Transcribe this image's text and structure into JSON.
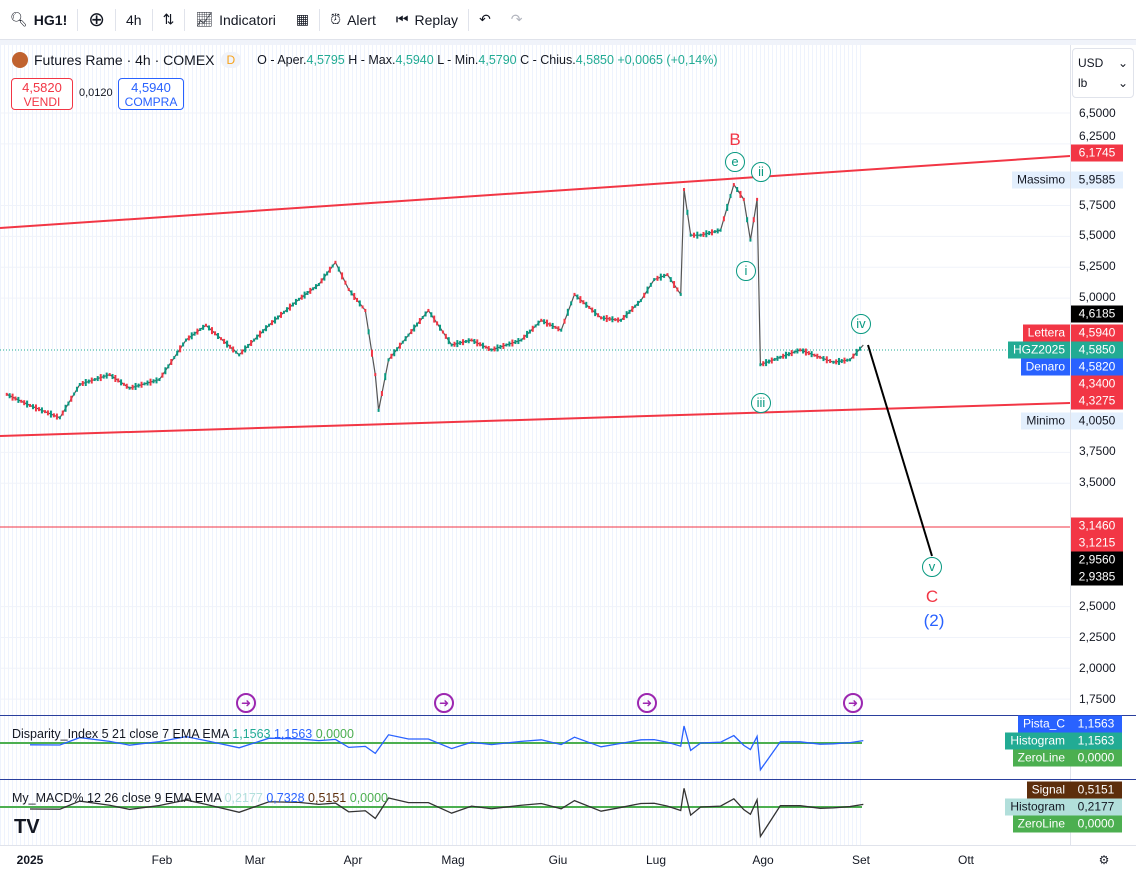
{
  "toolbar": {
    "symbol": "HG1!",
    "interval": "4h",
    "indicators": "Indicatori",
    "alert": "Alert",
    "replay": "Replay"
  },
  "legend": {
    "title": "Futures Rame · 4h · COMEX",
    "badge": "D",
    "open_label": "O - Aper.",
    "open": "4,5795",
    "high_label": "H - Max.",
    "high": "4,5940",
    "low_label": "L - Min.",
    "low": "4,5790",
    "close_label": "C - Chius.",
    "close": "4,5850",
    "change": "+0,0065 (+0,14%)"
  },
  "trade": {
    "sell_price": "4,5820",
    "sell_label": "VENDI",
    "spread": "0,0120",
    "buy_price": "4,5940",
    "buy_label": "COMPRA"
  },
  "units": {
    "currency": "USD",
    "unit": "lb"
  },
  "axis": {
    "ticks": [
      "6,5000",
      "6,2500",
      "5,7500",
      "5,5000",
      "5,2500",
      "5,0000",
      "3,7500",
      "3,5000",
      "2,5000",
      "2,2500",
      "2,0000",
      "1,7500"
    ],
    "tick_values": [
      6.5,
      6.25,
      5.75,
      5.5,
      5.25,
      5.0,
      3.75,
      3.5,
      2.5,
      2.25,
      2.0,
      1.75
    ],
    "tags": [
      {
        "value": "6,1745",
        "price": 6.1745,
        "color": "#f23645"
      },
      {
        "label": "Massimo",
        "value": "5,9585",
        "price": 5.9585,
        "color": "#e3effd",
        "text": "#131722"
      },
      {
        "value": "4,6185",
        "price": 4.6185,
        "color": "#000000"
      },
      {
        "label": "Lettera",
        "value": "4,5940",
        "price": 4.594,
        "color": "#f23645"
      },
      {
        "label": "HGZ2025",
        "value": "4,5850",
        "price": 4.585,
        "color": "#22ab94"
      },
      {
        "label": "Denaro",
        "value": "4,5820",
        "price": 4.582,
        "color": "#2962ff"
      },
      {
        "value": "4,3400",
        "price": 4.34,
        "color": "#f23645"
      },
      {
        "value": "4,3275",
        "price": 4.3275,
        "color": "#f23645"
      },
      {
        "label": "Minimo",
        "value": "4,0050",
        "price": 4.005,
        "color": "#e3effd",
        "text": "#131722"
      },
      {
        "value": "3,1460",
        "price": 3.146,
        "color": "#f23645"
      },
      {
        "value": "3,1215",
        "price": 3.1215,
        "color": "#f23645"
      },
      {
        "value": "2,9560",
        "price": 2.956,
        "color": "#000000"
      },
      {
        "value": "2,9385",
        "price": 2.9385,
        "color": "#000000"
      }
    ]
  },
  "price_path": {
    "days": [
      -7,
      0,
      9,
      15,
      24,
      30,
      39,
      47,
      53,
      63,
      72,
      81,
      87,
      92,
      96,
      101,
      104,
      105,
      108,
      114,
      120,
      127,
      133,
      139,
      148,
      154,
      160,
      164,
      172,
      178,
      184,
      188,
      192,
      196,
      197,
      199,
      202,
      208,
      212,
      215,
      217,
      219,
      220,
      226,
      232,
      238,
      242,
      247,
      251
    ],
    "prices": [
      4.22,
      4.13,
      4.03,
      4.3,
      4.38,
      4.27,
      4.34,
      4.66,
      4.78,
      4.54,
      4.78,
      4.99,
      5.11,
      5.29,
      5.07,
      4.9,
      4.38,
      4.09,
      4.5,
      4.7,
      4.9,
      4.62,
      4.66,
      4.58,
      4.66,
      4.82,
      4.74,
      5.03,
      4.84,
      4.82,
      4.98,
      5.15,
      5.19,
      5.03,
      5.88,
      5.51,
      5.51,
      5.55,
      5.92,
      5.8,
      5.47,
      5.8,
      4.46,
      4.52,
      4.58,
      4.52,
      4.48,
      4.5,
      4.62
    ]
  },
  "waves": {
    "B": "B",
    "e": "e",
    "ii": "ii",
    "i": "i",
    "iii": "iii",
    "iv": "iv",
    "v": "v",
    "C": "C",
    "two": "(2)"
  },
  "indicator1": {
    "name": "Disparity_Index 5 21 close 7 EMA EMA",
    "v1": "1,1563",
    "v2": "1,1563",
    "v3": "0,0000",
    "tags": [
      {
        "label": "Pista_C",
        "value": "1,1563",
        "color": "#2962ff"
      },
      {
        "label": "Histogram",
        "value": "1,1563",
        "color": "#22ab94"
      },
      {
        "label": "ZeroLine",
        "value": "0,0000",
        "color": "#4caf50"
      }
    ]
  },
  "indicator2": {
    "name": "My_MACD% 12 26 close 9 EMA EMA",
    "v1": "0,2177",
    "v2": "0,7328",
    "v3": "0,5151",
    "v4": "0,0000",
    "tags": [
      {
        "label": "Signal",
        "value": "0,5151",
        "color": "#5d2e0c"
      },
      {
        "label": "Histogram",
        "value": "0,2177",
        "color": "#b2dfdb",
        "text": "#131722"
      },
      {
        "label": "ZeroLine",
        "value": "0,0000",
        "color": "#4caf50"
      }
    ]
  },
  "time_axis": [
    "2025",
    "Feb",
    "Mar",
    "Apr",
    "Mag",
    "Giu",
    "Lug",
    "Ago",
    "Set",
    "Ott"
  ],
  "colors": {
    "up": "#089981",
    "down": "#f23645",
    "trend": "#f23645"
  }
}
